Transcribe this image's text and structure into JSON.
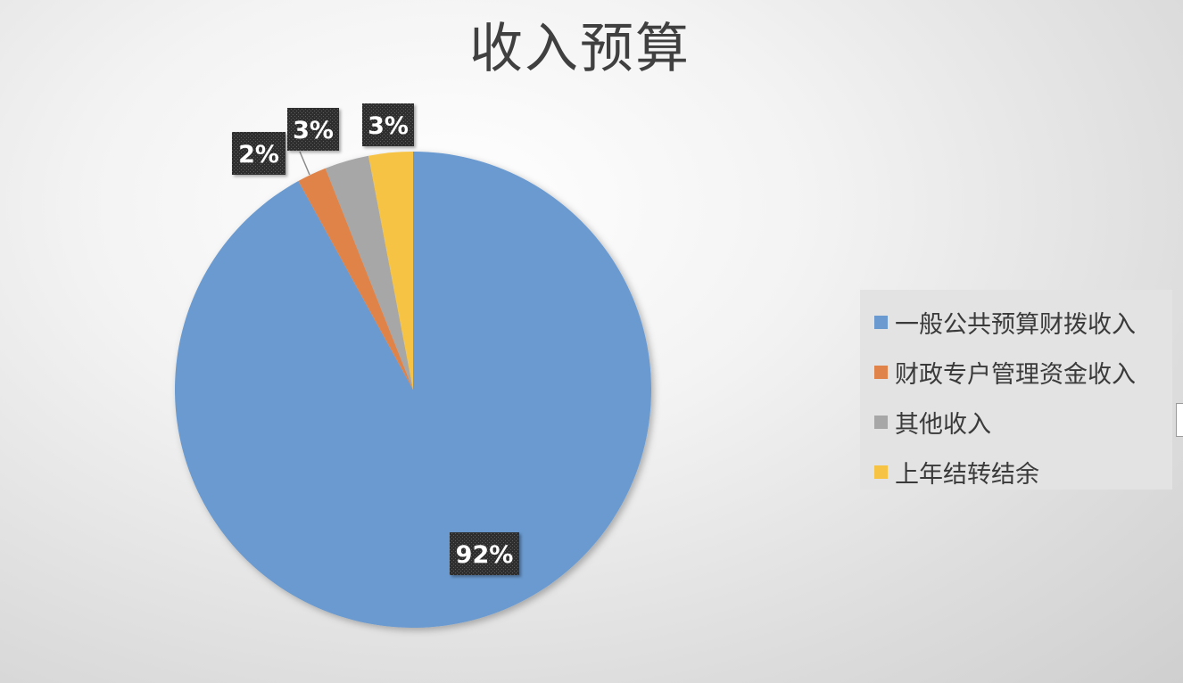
{
  "chart_data": {
    "type": "pie",
    "title": "收入预算",
    "categories": [
      "一般公共预算财拨收入",
      "财政专户管理资金收入",
      "其他收入",
      "上年结转结余"
    ],
    "values": [
      92,
      2,
      3,
      3
    ],
    "data_labels": [
      "92%",
      "2%",
      "3%",
      "3%"
    ],
    "colors": [
      "#6a9ad0",
      "#e0834a",
      "#a7a7a7",
      "#f6c344"
    ],
    "start_angle": "12 o'clock",
    "direction": "clockwise",
    "legend_position": "right"
  }
}
